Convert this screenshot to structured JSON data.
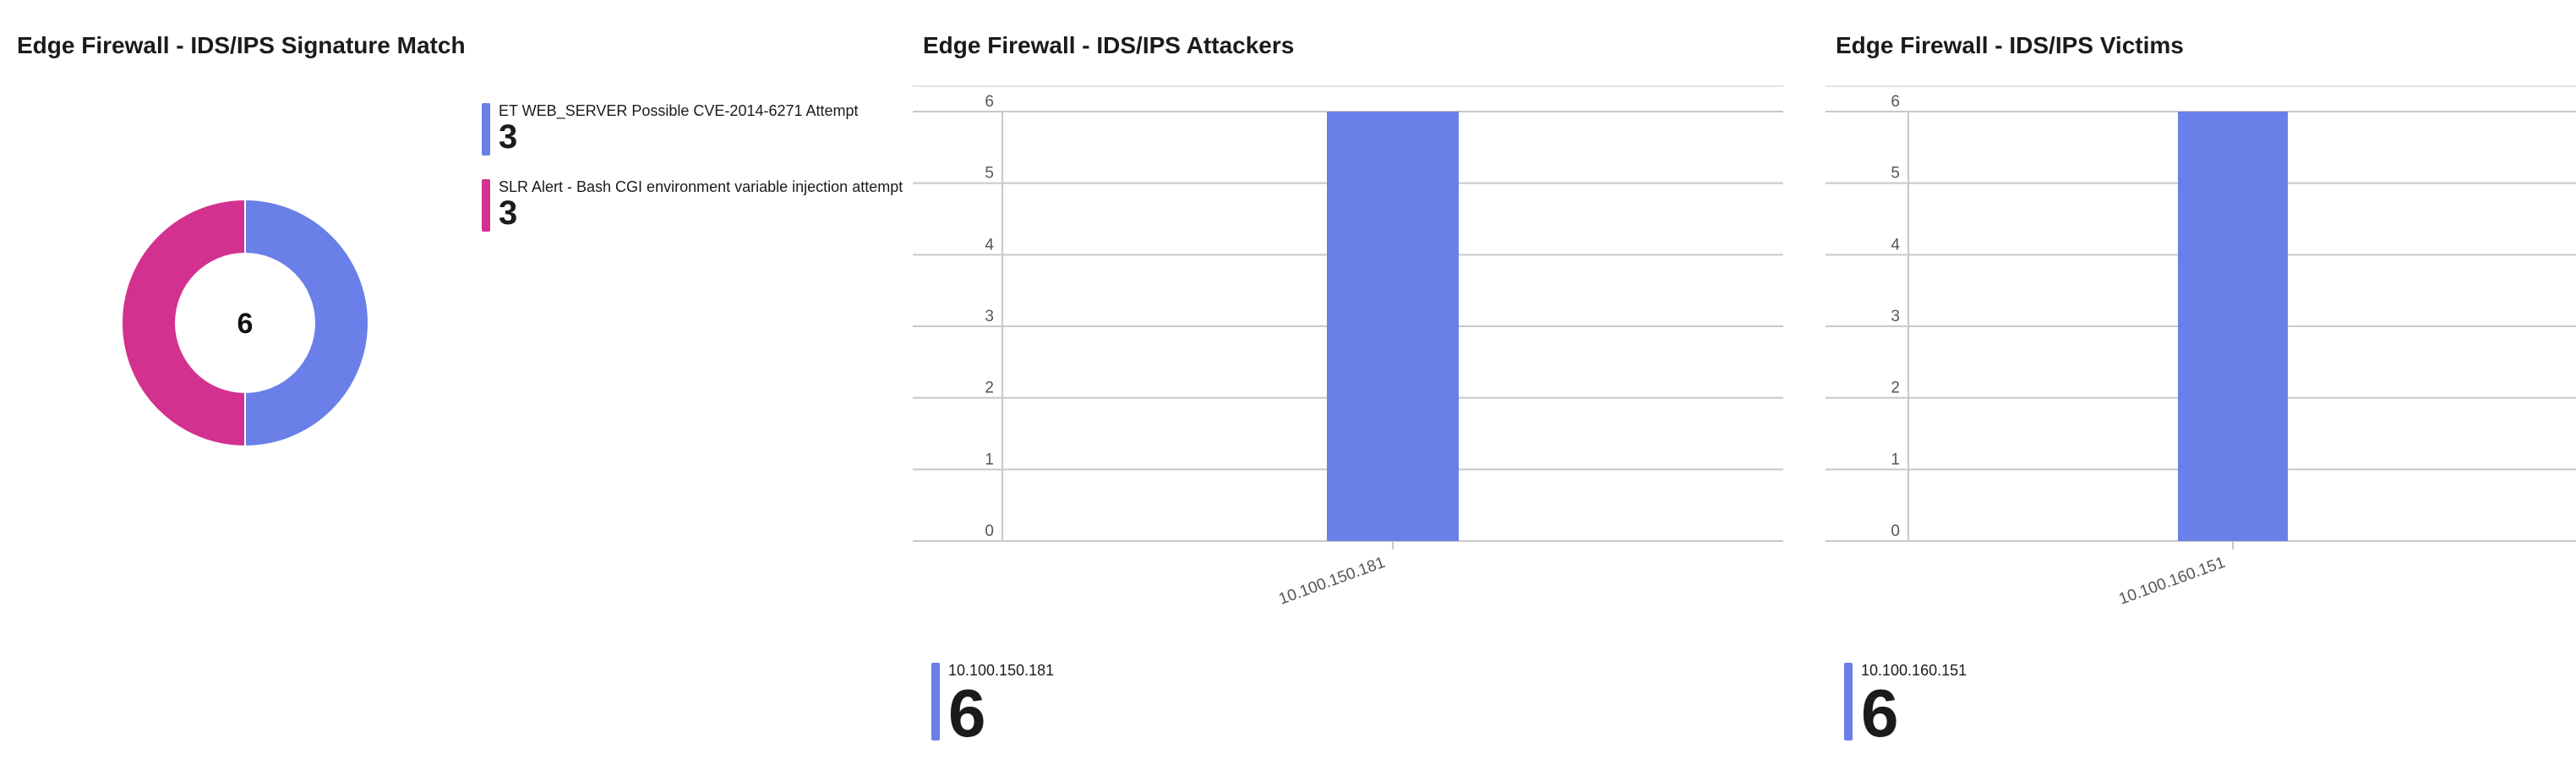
{
  "chart_data": [
    {
      "type": "pie",
      "title": "Edge Firewall - IDS/IPS Signature Match",
      "donut": true,
      "center_label": "6",
      "categories": [
        "ET WEB_SERVER Possible CVE-2014-6271 Attempt",
        "SLR Alert - Bash CGI environment variable injection attempt"
      ],
      "values": [
        3,
        3
      ],
      "colors": [
        "#6a7fe8",
        "#d3318f"
      ],
      "legend": "right"
    },
    {
      "type": "bar",
      "title": "Edge Firewall - IDS/IPS Attackers",
      "categories": [
        "10.100.150.181"
      ],
      "values": [
        6
      ],
      "ylim": [
        0,
        6
      ],
      "yticks": [
        0,
        1,
        2,
        3,
        4,
        5,
        6
      ],
      "grid": true,
      "color": "#6a7fe8",
      "legend": "bottom",
      "legend_entries": [
        {
          "label": "10.100.150.181",
          "value": "6"
        }
      ]
    },
    {
      "type": "bar",
      "title": "Edge Firewall - IDS/IPS Victims",
      "categories": [
        "10.100.160.151"
      ],
      "values": [
        6
      ],
      "ylim": [
        0,
        6
      ],
      "yticks": [
        0,
        1,
        2,
        3,
        4,
        5,
        6
      ],
      "grid": true,
      "color": "#6a7fe8",
      "legend": "bottom",
      "legend_entries": [
        {
          "label": "10.100.160.151",
          "value": "6"
        }
      ]
    }
  ]
}
